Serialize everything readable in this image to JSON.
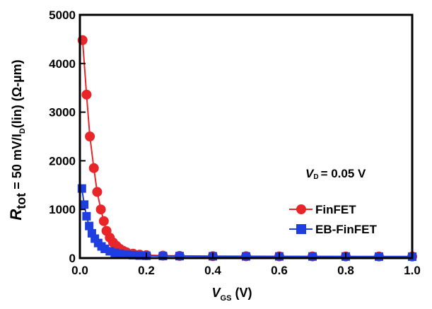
{
  "chart_data": {
    "type": "line",
    "xlabel": {
      "main": "V",
      "sub": "GS",
      "unit": " (V)"
    },
    "ylabel": {
      "main": "R",
      "sub": "tot",
      "rest": " = 50 mV/I",
      "sub2": "D",
      "rest2": "(lin) (Ω-µm)"
    },
    "xlim": [
      0,
      1.0
    ],
    "ylim": [
      0,
      5000
    ],
    "x_ticks": [
      "0.0",
      "0.2",
      "0.4",
      "0.6",
      "0.8",
      "1.0"
    ],
    "y_ticks": [
      "0",
      "1000",
      "2000",
      "3000",
      "4000",
      "5000"
    ],
    "annotation": {
      "main": "V",
      "sub": "D",
      "rest": "= 0.05 V"
    },
    "legend_position": "right",
    "series": [
      {
        "name": "FinFET",
        "color": "#e8262a",
        "marker": "circle",
        "x": [
          0.008,
          0.02,
          0.03,
          0.042,
          0.052,
          0.063,
          0.072,
          0.08,
          0.09,
          0.1,
          0.11,
          0.12,
          0.13,
          0.14,
          0.16,
          0.18,
          0.2,
          0.25,
          0.3,
          0.4,
          0.5,
          0.6,
          0.7,
          0.8,
          0.9,
          1.0
        ],
        "y": [
          4480,
          3360,
          2500,
          1850,
          1360,
          1000,
          760,
          560,
          420,
          320,
          250,
          190,
          150,
          120,
          90,
          70,
          60,
          50,
          45,
          40,
          38,
          36,
          35,
          34,
          33,
          32
        ]
      },
      {
        "name": "EB-FinFET",
        "color": "#1f3ee0",
        "marker": "square",
        "x": [
          0.006,
          0.013,
          0.02,
          0.028,
          0.036,
          0.045,
          0.055,
          0.065,
          0.075,
          0.09,
          0.105,
          0.12,
          0.14,
          0.16,
          0.18,
          0.2,
          0.25,
          0.3,
          0.4,
          0.5,
          0.6,
          0.7,
          0.8,
          0.9,
          1.0
        ],
        "y": [
          1430,
          1100,
          860,
          660,
          510,
          400,
          310,
          240,
          190,
          140,
          110,
          90,
          70,
          60,
          52,
          48,
          42,
          40,
          37,
          35,
          34,
          33,
          32,
          31,
          30
        ]
      }
    ]
  }
}
